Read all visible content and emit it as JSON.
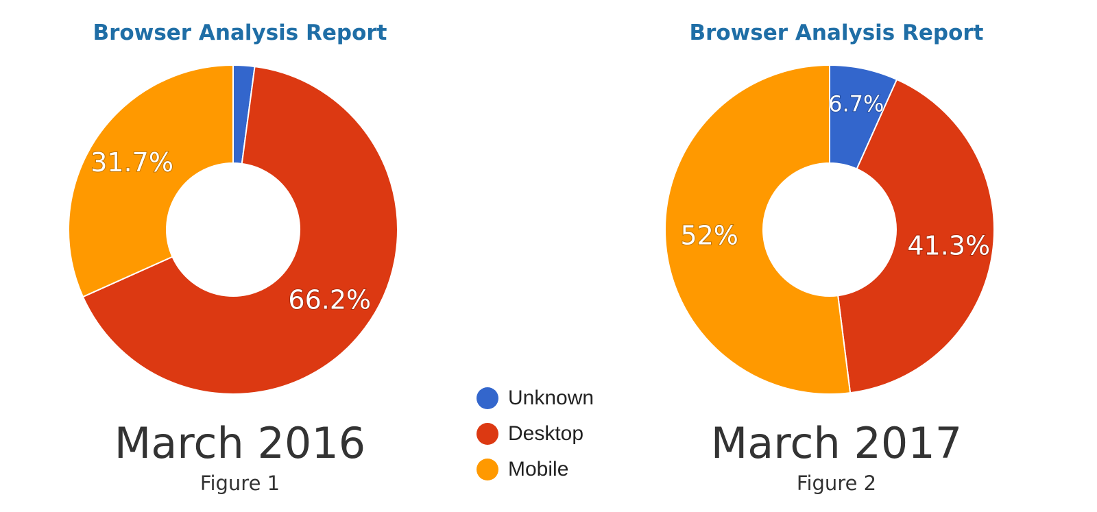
{
  "colors": {
    "Unknown": "#3366cc",
    "Desktop": "#dc3912",
    "Mobile": "#ff9900"
  },
  "legend": {
    "position": "bottom-center",
    "items": [
      {
        "label": "Unknown",
        "color": "#3366cc"
      },
      {
        "label": "Desktop",
        "color": "#dc3912"
      },
      {
        "label": "Mobile",
        "color": "#ff9900"
      }
    ]
  },
  "charts": [
    {
      "title": "Browser Analysis Report",
      "period": "March 2016",
      "figure": "Figure 1"
    },
    {
      "title": "Browser Analysis Report",
      "period": "March 2017",
      "figure": "Figure 2"
    }
  ],
  "chart_data": [
    {
      "type": "pie",
      "donut": true,
      "title": "Browser Analysis Report",
      "categories": [
        "Unknown",
        "Desktop",
        "Mobile"
      ],
      "values": [
        2.1,
        66.2,
        31.7
      ],
      "data_labels": [
        "",
        "66.2%",
        "31.7%"
      ]
    },
    {
      "type": "pie",
      "donut": true,
      "title": "Browser Analysis Report",
      "categories": [
        "Unknown",
        "Desktop",
        "Mobile"
      ],
      "values": [
        6.7,
        41.3,
        52
      ],
      "data_labels": [
        "6.7%",
        "41.3%",
        "52%"
      ]
    }
  ]
}
